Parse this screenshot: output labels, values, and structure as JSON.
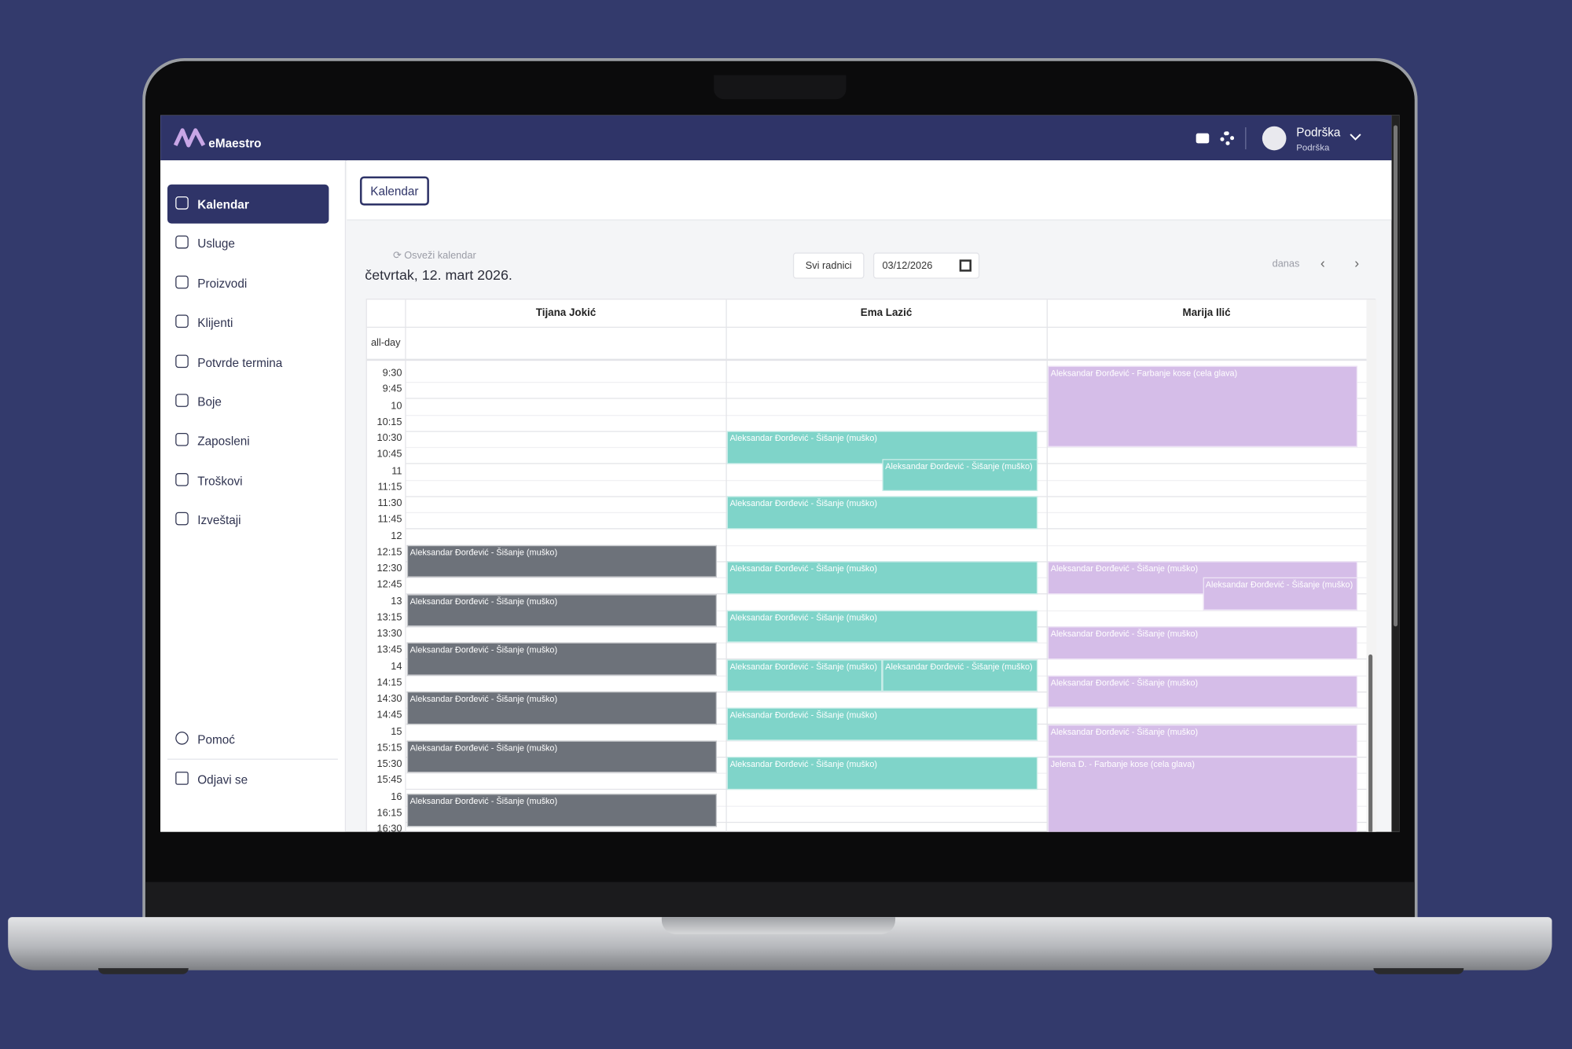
{
  "header": {
    "brand": "eMaestro",
    "user_name": "Podrška",
    "user_role": "Podrška"
  },
  "sidebar": {
    "items": [
      "Kalendar",
      "Usluge",
      "Proizvodi",
      "Klijenti",
      "Potvrde termina",
      "Boje",
      "Zaposleni",
      "Troškovi",
      "Izveštaji"
    ],
    "bottom_items": [
      "Pomoć",
      "Odjavi se"
    ]
  },
  "tab": "Kalendar",
  "toolbar": {
    "refresh": "Osveži kalendar",
    "date_title": "četvrtak, 12. mart 2026.",
    "staff_filter": "Svi radnici",
    "date_input": "03/12/2026",
    "today": "danas"
  },
  "calendar": {
    "all_day": "all-day",
    "times": [
      "9:30",
      "9:45",
      "10",
      "10:15",
      "10:30",
      "10:45",
      "11",
      "11:15",
      "11:30",
      "11:45",
      "12",
      "12:15",
      "12:30",
      "12:45",
      "13",
      "13:15",
      "13:30",
      "13:45",
      "14",
      "14:15",
      "14:30",
      "14:45",
      "15",
      "15:15",
      "15:30",
      "15:45",
      "16",
      "16:15",
      "16:30"
    ],
    "columns": [
      {
        "name": "Tijana Jokić",
        "events": [
          "Aleksandar Đorđević - Šišanje (muško)",
          "Aleksandar Đorđević - Šišanje (muško)",
          "Aleksandar Đorđević - Šišanje (muško)",
          "Aleksandar Đorđević - Šišanje (muško)",
          "Aleksandar Đorđević - Šišanje (muško)",
          "Aleksandar Đorđević - Šišanje (muško)"
        ]
      },
      {
        "name": "Ema Lazić",
        "events": [
          "Aleksandar Đorđević - Šišanje (muško)",
          "Aleksandar Đorđević - Šišanje (muško)",
          "Aleksandar Đorđević - Šišanje (muško)",
          "Aleksandar Đorđević - Šišanje (muško)",
          "Aleksandar Đorđević - Šišanje (muško)",
          "Aleksandar Đorđević - Šišanje (muško)",
          "Aleksandar Đorđević - Šišanje (muško)",
          "Aleksandar Đorđević - Šišanje (muško)",
          "Aleksandar Đorđević - Šišanje (muško)"
        ]
      },
      {
        "name": "Marija Ilić",
        "events": [
          "Aleksandar Đorđević - Farbanje kose (cela glava)",
          "Aleksandar Đorđević - Šišanje (muško)",
          "Aleksandar Đorđević - Šišanje (muško)",
          "Aleksandar Đorđević - Šišanje (muško)",
          "Aleksandar Đorđević - Šišanje (muško)",
          "Aleksandar Đorđević - Šišanje (muško)",
          "Jelena D. - Farbanje kose (cela glava)"
        ]
      }
    ]
  }
}
